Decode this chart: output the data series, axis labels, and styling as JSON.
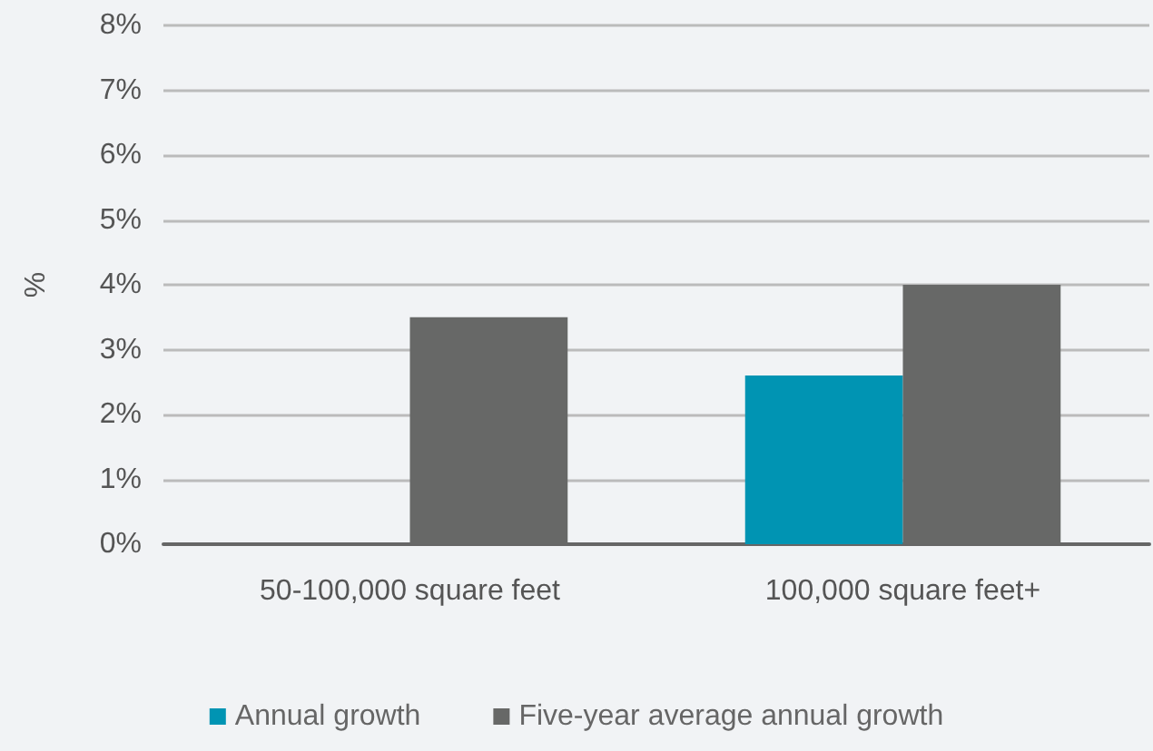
{
  "chart_data": {
    "type": "bar",
    "ylabel": "%",
    "categories": [
      "50-100,000 square feet",
      "100,000 square feet+"
    ],
    "series": [
      {
        "name": "Annual growth",
        "color": "#0094b3",
        "values": [
          null,
          2.6
        ]
      },
      {
        "name": "Five-year average annual growth",
        "color": "#676867",
        "values": [
          3.5,
          4.0
        ]
      }
    ],
    "ylim": [
      0,
      8
    ],
    "yticks": [
      {
        "value": 0,
        "label": "0%"
      },
      {
        "value": 1,
        "label": "1%"
      },
      {
        "value": 2,
        "label": "2%"
      },
      {
        "value": 3,
        "label": "3%"
      },
      {
        "value": 4,
        "label": "4%"
      },
      {
        "value": 5,
        "label": "5%"
      },
      {
        "value": 6,
        "label": "6%"
      },
      {
        "value": 7,
        "label": "7%"
      },
      {
        "value": 8,
        "label": "8%"
      }
    ],
    "grid": "y",
    "legend": "bottom"
  }
}
